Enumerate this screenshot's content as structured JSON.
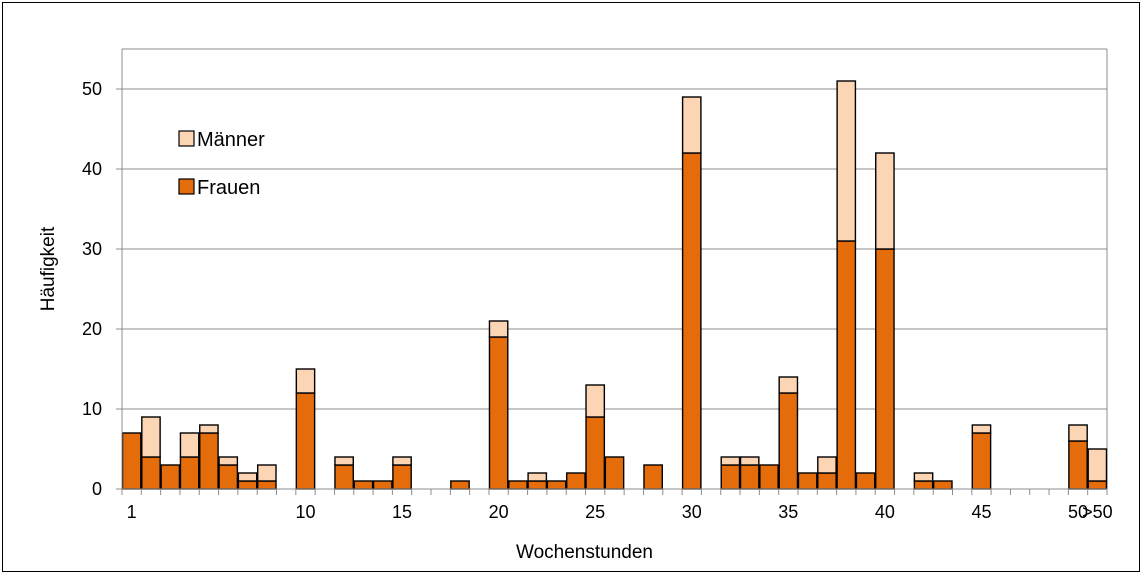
{
  "chart_data": {
    "type": "bar",
    "stacked": true,
    "xlabel": "Wochenstunden",
    "ylabel": "Häufigkeit",
    "ylim": [
      0,
      55
    ],
    "yticks": [
      0,
      10,
      20,
      30,
      40,
      50
    ],
    "grid": true,
    "legend_position": "top-left",
    "categories": [
      "1",
      "2",
      "3",
      "4",
      "5",
      "6",
      "7",
      "8",
      "9",
      "10",
      "11",
      "12",
      "13",
      "14",
      "15",
      "16",
      "17",
      "18",
      "19",
      "20",
      "21",
      "22",
      "23",
      "24",
      "25",
      "26",
      "27",
      "28",
      "29",
      "30",
      "31",
      "32",
      "33",
      "34",
      "35",
      "36",
      "37",
      "38",
      "39",
      "40",
      "41",
      "42",
      "43",
      "44",
      "45",
      "46",
      "47",
      "48",
      "49",
      "50",
      ">50"
    ],
    "x_tick_labels": [
      {
        "category": "1",
        "label": "1"
      },
      {
        "category": "10",
        "label": "10"
      },
      {
        "category": "15",
        "label": "15"
      },
      {
        "category": "20",
        "label": "20"
      },
      {
        "category": "25",
        "label": "25"
      },
      {
        "category": "30",
        "label": "30"
      },
      {
        "category": "35",
        "label": "35"
      },
      {
        "category": "40",
        "label": "40"
      },
      {
        "category": "45",
        "label": "45"
      },
      {
        "category": "50",
        "label": "50"
      },
      {
        "category": ">50",
        "label": ">50"
      }
    ],
    "series": [
      {
        "name": "Frauen",
        "color": "#E46C0A",
        "values": [
          7,
          4,
          3,
          4,
          7,
          3,
          1,
          1,
          0,
          12,
          0,
          3,
          1,
          1,
          3,
          0,
          0,
          1,
          0,
          19,
          1,
          1,
          1,
          2,
          9,
          4,
          0,
          3,
          0,
          42,
          0,
          3,
          3,
          3,
          12,
          2,
          2,
          31,
          2,
          30,
          0,
          1,
          1,
          0,
          7,
          0,
          0,
          0,
          0,
          6,
          1
        ]
      },
      {
        "name": "Männer",
        "color": "#FCD5B5",
        "values": [
          0,
          5,
          0,
          3,
          1,
          1,
          1,
          2,
          0,
          3,
          0,
          1,
          0,
          0,
          1,
          0,
          0,
          0,
          0,
          2,
          0,
          1,
          0,
          0,
          4,
          0,
          0,
          0,
          0,
          7,
          0,
          1,
          1,
          0,
          2,
          0,
          2,
          20,
          0,
          12,
          0,
          1,
          0,
          0,
          1,
          0,
          0,
          0,
          0,
          2,
          4
        ]
      }
    ]
  }
}
